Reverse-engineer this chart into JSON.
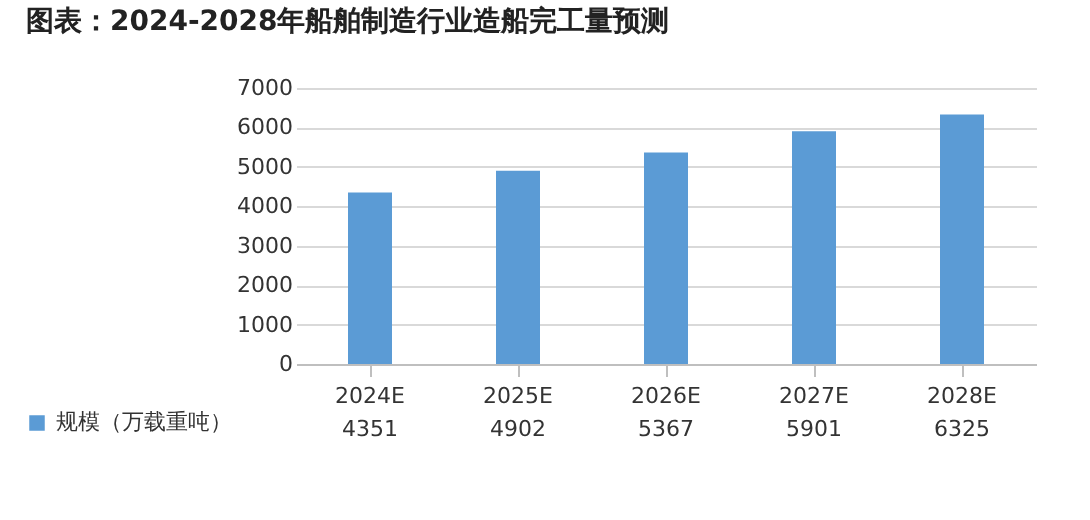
{
  "chart_data": {
    "type": "bar",
    "title": "图表：2024-2028年船舶制造行业造船完工量预测",
    "categories": [
      "2024E",
      "2025E",
      "2026E",
      "2027E",
      "2028E"
    ],
    "series": [
      {
        "name": "规模（万载重吨）",
        "color": "#5b9bd5",
        "values": [
          4351,
          4902,
          5367,
          5901,
          6325
        ]
      }
    ],
    "ylim": [
      0,
      7000
    ],
    "yticks": [
      0,
      1000,
      2000,
      3000,
      4000,
      5000,
      6000,
      7000
    ],
    "grid": "y",
    "legend": "bottom left",
    "data_labels": true
  }
}
